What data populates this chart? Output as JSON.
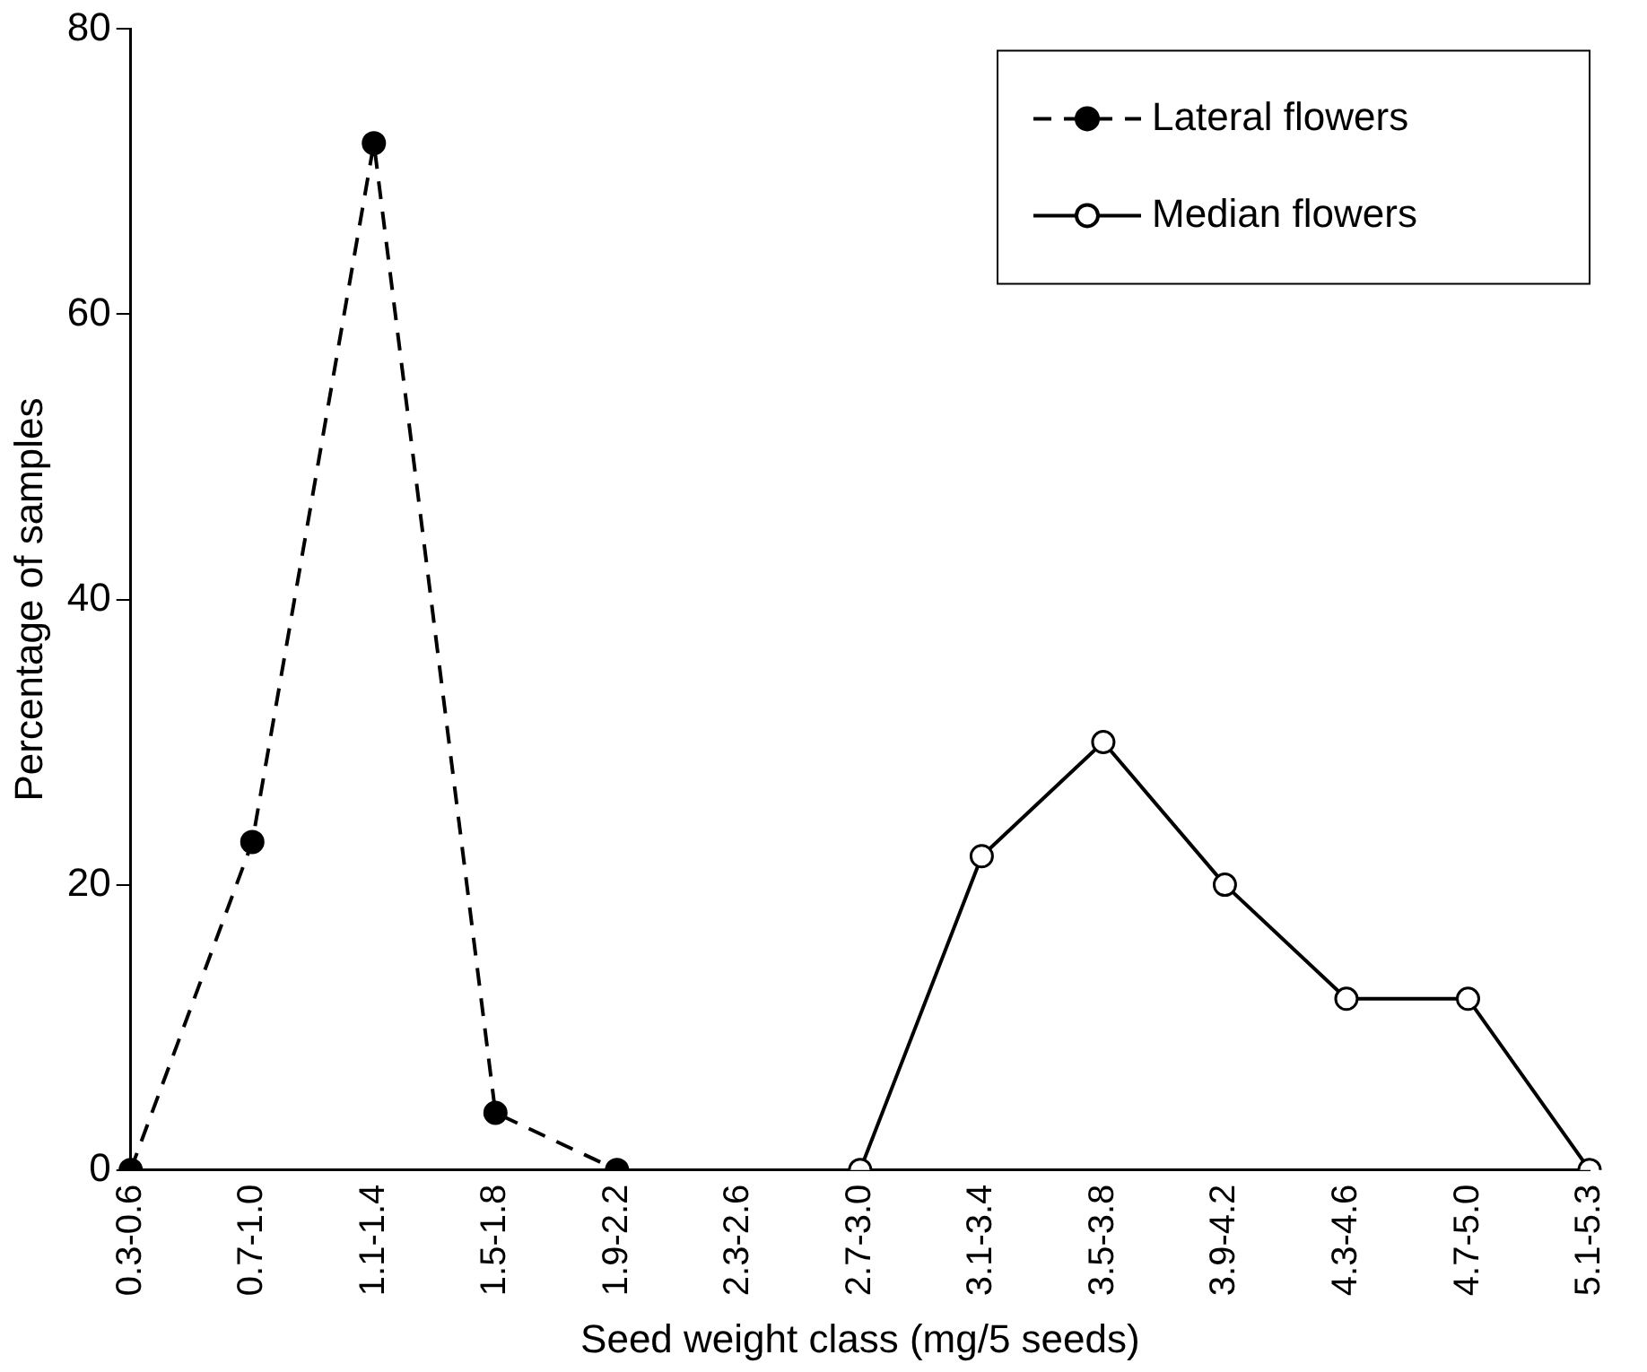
{
  "chart_data": {
    "type": "line",
    "xlabel": "Seed weight class (mg/5 seeds)",
    "ylabel": "Percentage of samples",
    "categories": [
      "0.3-0.6",
      "0.7-1.0",
      "1.1-1.4",
      "1.5-1.8",
      "1.9-2.2",
      "2.3-2.6",
      "2.7-3.0",
      "3.1-3.4",
      "3.5-3.8",
      "3.9-4.2",
      "4.3-4.6",
      "4.7-5.0",
      "5.1-5.3"
    ],
    "series": [
      {
        "name": "Lateral flowers",
        "color": "#000000",
        "line_style": "dashed",
        "values": [
          0,
          23,
          72,
          4,
          0,
          null,
          null,
          null,
          null,
          null,
          null,
          null,
          null
        ]
      },
      {
        "name": "Median flowers",
        "color": "#000000",
        "line_style": "solid",
        "values": [
          null,
          null,
          null,
          null,
          null,
          null,
          0,
          22,
          30,
          20,
          12,
          12,
          0
        ]
      }
    ],
    "ylim": [
      0,
      80
    ],
    "yticks": [
      0,
      20,
      40,
      60,
      80
    ],
    "grid": false,
    "legend": "top right",
    "marker": "circle"
  }
}
